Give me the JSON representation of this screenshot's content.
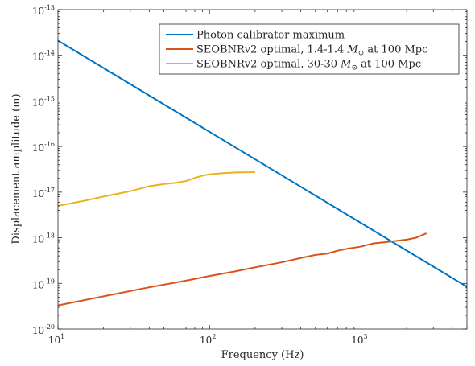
{
  "chart_data": {
    "type": "line",
    "x_scale": "log",
    "y_scale": "log",
    "xlabel": "Frequency (Hz)",
    "ylabel": "Displacement amplitude (m)",
    "xlim": [
      10,
      5000
    ],
    "ylim": [
      1e-20,
      1e-13
    ],
    "grid": false,
    "legend_position": "top-right",
    "x_ticks": [
      {
        "base": "10",
        "exp": "1",
        "value": 10
      },
      {
        "base": "10",
        "exp": "2",
        "value": 100
      },
      {
        "base": "10",
        "exp": "3",
        "value": 1000
      }
    ],
    "y_ticks": [
      {
        "base": "10",
        "exp": "-20",
        "value": 1e-20
      },
      {
        "base": "10",
        "exp": "-19",
        "value": 1e-19
      },
      {
        "base": "10",
        "exp": "-18",
        "value": 1e-18
      },
      {
        "base": "10",
        "exp": "-17",
        "value": 1e-17
      },
      {
        "base": "10",
        "exp": "-16",
        "value": 1e-16
      },
      {
        "base": "10",
        "exp": "-15",
        "value": 1e-15
      },
      {
        "base": "10",
        "exp": "-14",
        "value": 1e-14
      },
      {
        "base": "10",
        "exp": "-13",
        "value": 1e-13
      }
    ],
    "series": [
      {
        "name": "Photon calibrator maximum",
        "name_parts": [
          "Photon calibrator maximum",
          "",
          ""
        ],
        "color": "#0072BD",
        "x": [
          10,
          5000
        ],
        "y": [
          2.1e-14,
          8.4e-20
        ]
      },
      {
        "name": "SEOBNRv2 optimal, 1.4-1.4 M⊙ at 100 Mpc",
        "name_parts": [
          "SEOBNRv2 optimal, 1.4-1.4 ",
          "M",
          " at 100 Mpc"
        ],
        "color": "#D95319",
        "x": [
          10,
          20,
          40,
          70,
          100,
          150,
          200,
          300,
          400,
          500,
          600,
          700,
          800,
          1000,
          1200,
          1500,
          2000,
          2300,
          2700
        ],
        "y": [
          3.3e-20,
          5.2e-20,
          8.2e-20,
          1.15e-19,
          1.45e-19,
          1.85e-19,
          2.25e-19,
          2.9e-19,
          3.6e-19,
          4.2e-19,
          4.5e-19,
          5.2e-19,
          5.7e-19,
          6.4e-19,
          7.5e-19,
          8.1e-19,
          9.1e-19,
          1e-18,
          1.25e-18
        ]
      },
      {
        "name": "SEOBNRv2 optimal, 30-30 M⊙ at 100 Mpc",
        "name_parts": [
          "SEOBNRv2 optimal, 30-30 ",
          "M",
          " at 100 Mpc"
        ],
        "color": "#EDB120",
        "x": [
          10,
          15,
          20,
          30,
          40,
          50,
          60,
          70,
          80,
          90,
          100,
          120,
          150,
          200
        ],
        "y": [
          5e-18,
          6.5e-18,
          8e-18,
          1.05e-17,
          1.35e-17,
          1.5e-17,
          1.6e-17,
          1.75e-17,
          2.05e-17,
          2.3e-17,
          2.45e-17,
          2.6e-17,
          2.7e-17,
          2.75e-17
        ]
      }
    ]
  }
}
